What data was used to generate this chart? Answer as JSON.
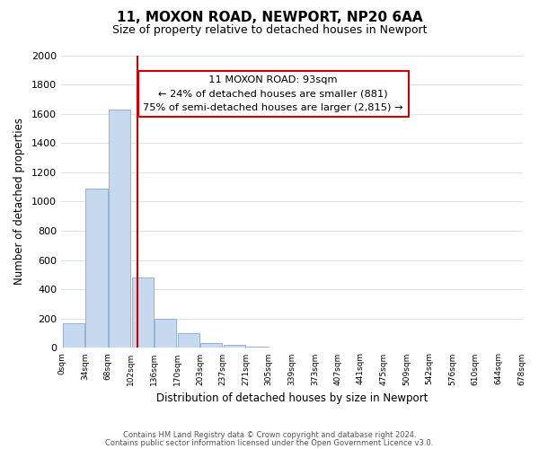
{
  "title": "11, MOXON ROAD, NEWPORT, NP20 6AA",
  "subtitle": "Size of property relative to detached houses in Newport",
  "xlabel": "Distribution of detached houses by size in Newport",
  "ylabel": "Number of detached properties",
  "bar_color": "#c6d9ee",
  "bar_edge_color": "#92b4d4",
  "bin_labels": [
    "0sqm",
    "34sqm",
    "68sqm",
    "102sqm",
    "136sqm",
    "170sqm",
    "203sqm",
    "237sqm",
    "271sqm",
    "305sqm",
    "339sqm",
    "373sqm",
    "407sqm",
    "441sqm",
    "475sqm",
    "509sqm",
    "542sqm",
    "576sqm",
    "610sqm",
    "644sqm",
    "678sqm"
  ],
  "bar_heights": [
    170,
    1090,
    1630,
    480,
    200,
    100,
    35,
    20,
    10,
    5,
    0,
    0,
    5,
    0,
    0,
    0,
    0,
    0,
    0,
    0
  ],
  "ylim": [
    0,
    2000
  ],
  "yticks": [
    0,
    200,
    400,
    600,
    800,
    1000,
    1200,
    1400,
    1600,
    1800,
    2000
  ],
  "vline_x": 2.76,
  "vline_color": "#cc0000",
  "annotation_title": "11 MOXON ROAD: 93sqm",
  "annotation_line1": "← 24% of detached houses are smaller (881)",
  "annotation_line2": "75% of semi-detached houses are larger (2,815) →",
  "annotation_box_facecolor": "#ffffff",
  "annotation_box_edgecolor": "#cc0000",
  "footnote1": "Contains HM Land Registry data © Crown copyright and database right 2024.",
  "footnote2": "Contains public sector information licensed under the Open Government Licence v3.0.",
  "background_color": "#ffffff",
  "grid_color": "#d8e4f0"
}
